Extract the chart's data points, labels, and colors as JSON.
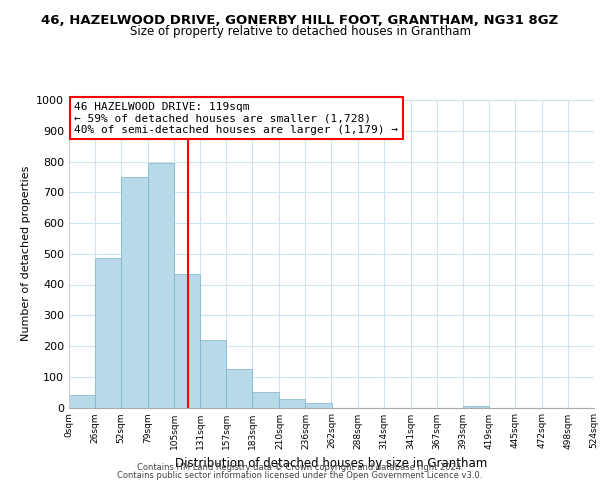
{
  "title": "46, HAZELWOOD DRIVE, GONERBY HILL FOOT, GRANTHAM, NG31 8GZ",
  "subtitle": "Size of property relative to detached houses in Grantham",
  "xlabel": "Distribution of detached houses by size in Grantham",
  "ylabel": "Number of detached properties",
  "bar_color": "#b8d9e8",
  "bar_edge_color": "#7ab3cc",
  "grid_color": "#d0e4f0",
  "vline_x": 119,
  "vline_color": "red",
  "annotation_lines": [
    "46 HAZELWOOD DRIVE: 119sqm",
    "← 59% of detached houses are smaller (1,728)",
    "40% of semi-detached houses are larger (1,179) →"
  ],
  "annotation_box_color": "white",
  "annotation_box_edge": "red",
  "bins": [
    0,
    26,
    52,
    79,
    105,
    131,
    157,
    183,
    210,
    236,
    262,
    288,
    314,
    341,
    367,
    393,
    419,
    445,
    472,
    498,
    524
  ],
  "bin_labels": [
    "0sqm",
    "26sqm",
    "52sqm",
    "79sqm",
    "105sqm",
    "131sqm",
    "157sqm",
    "183sqm",
    "210sqm",
    "236sqm",
    "262sqm",
    "288sqm",
    "314sqm",
    "341sqm",
    "367sqm",
    "393sqm",
    "419sqm",
    "445sqm",
    "472sqm",
    "498sqm",
    "524sqm"
  ],
  "bar_heights": [
    42,
    485,
    750,
    795,
    435,
    220,
    125,
    52,
    28,
    15,
    0,
    0,
    0,
    0,
    0,
    5,
    0,
    0,
    0,
    0
  ],
  "ylim": [
    0,
    1000
  ],
  "yticks": [
    0,
    100,
    200,
    300,
    400,
    500,
    600,
    700,
    800,
    900,
    1000
  ],
  "footer_line1": "Contains HM Land Registry data © Crown copyright and database right 2024.",
  "footer_line2": "Contains public sector information licensed under the Open Government Licence v3.0.",
  "background_color": "white"
}
